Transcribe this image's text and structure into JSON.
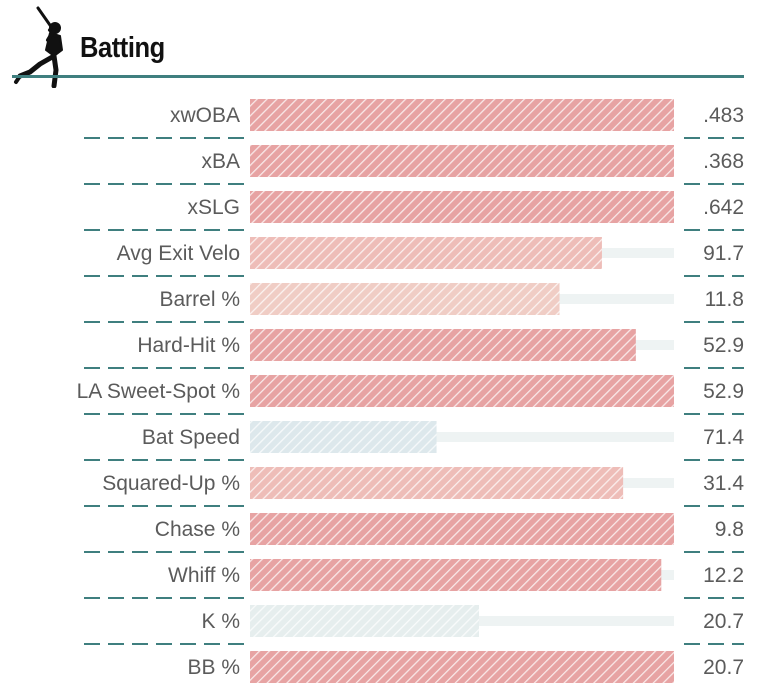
{
  "header": {
    "title": "Batting",
    "icon": "batter-icon"
  },
  "colors": {
    "rule": "#3f7f7f",
    "dash": "#3f7f7f",
    "track": "#eef3f3",
    "bar_strong": "#e7a3a3",
    "bar_medium": "#eebdb8",
    "bar_light": "#f0cdc5",
    "bar_cool": "#dde8ec",
    "bar_cool_light": "#e6eeee"
  },
  "chart_data": {
    "type": "bar",
    "orientation": "horizontal",
    "categories": [
      "xwOBA",
      "xBA",
      "xSLG",
      "Avg Exit Velo",
      "Barrel %",
      "Hard-Hit %",
      "LA Sweet-Spot %",
      "Bat Speed",
      "Squared-Up %",
      "Chase %",
      "Whiff %",
      "K %",
      "BB %"
    ],
    "value_labels": [
      ".483",
      ".368",
      ".642",
      "91.7",
      "11.8",
      "52.9",
      "52.9",
      "71.4",
      "31.4",
      "9.8",
      "12.2",
      "20.7",
      "20.7"
    ],
    "percentiles": [
      100,
      100,
      100,
      83,
      73,
      91,
      100,
      44,
      88,
      100,
      97,
      54,
      100
    ],
    "bar_colors": [
      "#e7a3a3",
      "#e7a3a3",
      "#e7a3a3",
      "#eebdb8",
      "#f0cdc5",
      "#e7a3a3",
      "#e7a3a3",
      "#dde8ec",
      "#eebdb8",
      "#e7a3a3",
      "#e7a3a3",
      "#e6eeee",
      "#e7a3a3"
    ],
    "xlim": [
      0,
      100
    ]
  }
}
